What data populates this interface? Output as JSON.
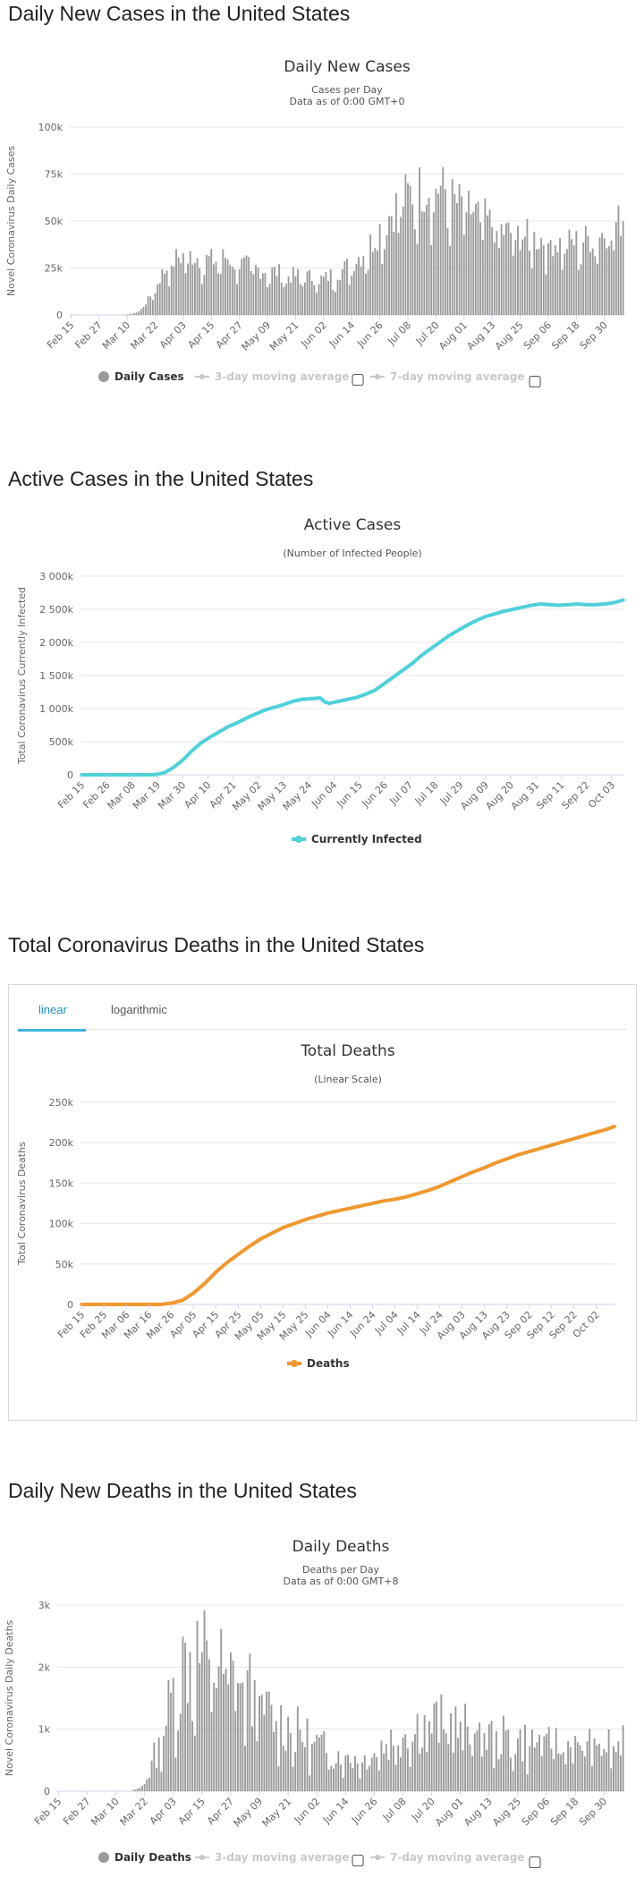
{
  "sections": [
    {
      "title": "Daily New Cases in the United States"
    },
    {
      "title": "Active Cases in the United States"
    },
    {
      "title": "Total Coronavirus Deaths in the United States"
    },
    {
      "title": "Daily New Deaths in the United States"
    }
  ],
  "tabs": {
    "linear": "linear",
    "log": "logarithmic"
  },
  "checkbox_glyph": "▢",
  "colors": {
    "bar": "#9a9a9a",
    "active": "#4fd1d9",
    "deaths": "#f0982f",
    "muted": "#c8c8c8",
    "grid": "#e6e6e6"
  },
  "chart_data": [
    {
      "id": "daily-cases",
      "type": "bar",
      "title": "Daily New Cases",
      "subtitle": [
        "Cases per Day",
        "Data as of 0:00 GMT+0"
      ],
      "ylabel": "Novel Coronavirus Daily Cases",
      "ylim": [
        0,
        100000
      ],
      "y_ticks": [
        {
          "value": 0,
          "label": "0"
        },
        {
          "value": 25000,
          "label": "25k"
        },
        {
          "value": 50000,
          "label": "50k"
        },
        {
          "value": 75000,
          "label": "75k"
        },
        {
          "value": 100000,
          "label": "100k"
        }
      ],
      "x_ticks": [
        "Feb 15",
        "Feb 27",
        "Mar 10",
        "Mar 22",
        "Apr 03",
        "Apr 15",
        "Apr 27",
        "May 09",
        "May 21",
        "Jun 02",
        "Jun 14",
        "Jun 26",
        "Jul 08",
        "Jul 20",
        "Aug 01",
        "Aug 13",
        "Aug 25",
        "Sep 06",
        "Sep 18",
        "Sep 30"
      ],
      "x_tick_step": 12,
      "n_days": 237,
      "anchors": [
        [
          0,
          0
        ],
        [
          22,
          0
        ],
        [
          26,
          500
        ],
        [
          30,
          3000
        ],
        [
          34,
          10000
        ],
        [
          38,
          20000
        ],
        [
          42,
          27000
        ],
        [
          46,
          31000
        ],
        [
          52,
          32000
        ],
        [
          56,
          30000
        ],
        [
          62,
          29000
        ],
        [
          66,
          31000
        ],
        [
          72,
          27000
        ],
        [
          76,
          26000
        ],
        [
          82,
          24000
        ],
        [
          88,
          23000
        ],
        [
          92,
          21000
        ],
        [
          98,
          21000
        ],
        [
          104,
          20000
        ],
        [
          108,
          19000
        ],
        [
          112,
          22000
        ],
        [
          116,
          24000
        ],
        [
          120,
          28000
        ],
        [
          124,
          32000
        ],
        [
          128,
          38000
        ],
        [
          132,
          46000
        ],
        [
          136,
          53000
        ],
        [
          140,
          60000
        ],
        [
          144,
          64000
        ],
        [
          148,
          67000
        ],
        [
          152,
          68000
        ],
        [
          156,
          69000
        ],
        [
          160,
          66000
        ],
        [
          164,
          60000
        ],
        [
          168,
          58000
        ],
        [
          172,
          55000
        ],
        [
          176,
          52000
        ],
        [
          180,
          48000
        ],
        [
          186,
          44000
        ],
        [
          192,
          43000
        ],
        [
          198,
          41000
        ],
        [
          204,
          40000
        ],
        [
          210,
          38000
        ],
        [
          216,
          39000
        ],
        [
          222,
          41000
        ],
        [
          228,
          44000
        ],
        [
          232,
          47000
        ],
        [
          236,
          52000
        ]
      ],
      "noise": 0.22,
      "seed": 7,
      "legend": [
        "Daily Cases",
        "3-day moving average",
        "7-day moving average"
      ]
    },
    {
      "id": "active-cases",
      "type": "line",
      "title": "Active Cases",
      "subtitle": [
        "(Number of Infected People)"
      ],
      "ylabel": "Total Coronavirus Currently Infected",
      "ylim": [
        0,
        3000000
      ],
      "y_ticks": [
        {
          "value": 0,
          "label": "0"
        },
        {
          "value": 500000,
          "label": "500k"
        },
        {
          "value": 1000000,
          "label": "1 000k"
        },
        {
          "value": 1500000,
          "label": "1 500k"
        },
        {
          "value": 2000000,
          "label": "2 000k"
        },
        {
          "value": 2500000,
          "label": "2 500k"
        },
        {
          "value": 3000000,
          "label": "3 000k"
        }
      ],
      "x_ticks": [
        "Feb 15",
        "Feb 26",
        "Mar 08",
        "Mar 19",
        "Mar 30",
        "Apr 10",
        "Apr 21",
        "May 02",
        "May 13",
        "May 24",
        "Jun 04",
        "Jun 15",
        "Jun 26",
        "Jul 07",
        "Jul 18",
        "Jul 29",
        "Aug 09",
        "Aug 20",
        "Aug 31",
        "Sep 11",
        "Sep 22",
        "Oct 03"
      ],
      "x_tick_step": 11,
      "n_days": 237,
      "anchors": [
        [
          0,
          0
        ],
        [
          28,
          0
        ],
        [
          32,
          3000
        ],
        [
          36,
          30000
        ],
        [
          40,
          110000
        ],
        [
          44,
          220000
        ],
        [
          48,
          360000
        ],
        [
          52,
          480000
        ],
        [
          56,
          570000
        ],
        [
          60,
          650000
        ],
        [
          64,
          730000
        ],
        [
          68,
          790000
        ],
        [
          72,
          860000
        ],
        [
          76,
          920000
        ],
        [
          80,
          980000
        ],
        [
          84,
          1020000
        ],
        [
          88,
          1060000
        ],
        [
          92,
          1110000
        ],
        [
          96,
          1140000
        ],
        [
          100,
          1150000
        ],
        [
          104,
          1160000
        ],
        [
          106,
          1100000
        ],
        [
          108,
          1080000
        ],
        [
          112,
          1110000
        ],
        [
          116,
          1140000
        ],
        [
          120,
          1170000
        ],
        [
          124,
          1220000
        ],
        [
          128,
          1280000
        ],
        [
          132,
          1380000
        ],
        [
          136,
          1480000
        ],
        [
          140,
          1580000
        ],
        [
          144,
          1680000
        ],
        [
          148,
          1800000
        ],
        [
          152,
          1900000
        ],
        [
          156,
          2000000
        ],
        [
          160,
          2100000
        ],
        [
          164,
          2180000
        ],
        [
          168,
          2260000
        ],
        [
          172,
          2330000
        ],
        [
          176,
          2390000
        ],
        [
          180,
          2430000
        ],
        [
          184,
          2470000
        ],
        [
          188,
          2500000
        ],
        [
          192,
          2530000
        ],
        [
          196,
          2560000
        ],
        [
          200,
          2580000
        ],
        [
          204,
          2570000
        ],
        [
          208,
          2560000
        ],
        [
          212,
          2570000
        ],
        [
          216,
          2580000
        ],
        [
          220,
          2570000
        ],
        [
          224,
          2570000
        ],
        [
          228,
          2580000
        ],
        [
          232,
          2600000
        ],
        [
          236,
          2640000
        ]
      ],
      "series_name": "Currently Infected"
    },
    {
      "id": "total-deaths",
      "type": "line",
      "title": "Total Deaths",
      "subtitle": [
        "(Linear Scale)"
      ],
      "ylabel": "Total Coronavirus Deaths",
      "ylim": [
        0,
        250000
      ],
      "y_ticks": [
        {
          "value": 0,
          "label": "0"
        },
        {
          "value": 50000,
          "label": "50k"
        },
        {
          "value": 100000,
          "label": "100k"
        },
        {
          "value": 150000,
          "label": "150k"
        },
        {
          "value": 200000,
          "label": "200k"
        },
        {
          "value": 250000,
          "label": "250k"
        }
      ],
      "x_ticks": [
        "Feb 15",
        "Feb 25",
        "Mar 06",
        "Mar 16",
        "Mar 26",
        "Apr 05",
        "Apr 15",
        "Apr 25",
        "May 05",
        "May 15",
        "May 25",
        "Jun 04",
        "Jun 14",
        "Jun 24",
        "Jul 04",
        "Jul 14",
        "Jul 24",
        "Aug 03",
        "Aug 13",
        "Aug 23",
        "Sep 02",
        "Sep 12",
        "Sep 22",
        "Oct 02"
      ],
      "x_tick_step": 10,
      "n_days": 239,
      "anchors": [
        [
          0,
          0
        ],
        [
          35,
          0
        ],
        [
          40,
          1500
        ],
        [
          45,
          5000
        ],
        [
          50,
          14000
        ],
        [
          55,
          26000
        ],
        [
          60,
          40000
        ],
        [
          65,
          52000
        ],
        [
          70,
          62000
        ],
        [
          75,
          72000
        ],
        [
          80,
          81000
        ],
        [
          85,
          88000
        ],
        [
          90,
          95000
        ],
        [
          95,
          100000
        ],
        [
          100,
          105000
        ],
        [
          105,
          109000
        ],
        [
          110,
          113000
        ],
        [
          115,
          116000
        ],
        [
          120,
          119000
        ],
        [
          125,
          122000
        ],
        [
          130,
          125000
        ],
        [
          135,
          128000
        ],
        [
          140,
          130000
        ],
        [
          145,
          133000
        ],
        [
          150,
          137000
        ],
        [
          155,
          141000
        ],
        [
          160,
          146000
        ],
        [
          165,
          152000
        ],
        [
          170,
          158000
        ],
        [
          175,
          164000
        ],
        [
          180,
          169000
        ],
        [
          185,
          175000
        ],
        [
          190,
          180000
        ],
        [
          195,
          185000
        ],
        [
          200,
          189000
        ],
        [
          205,
          193000
        ],
        [
          210,
          197000
        ],
        [
          215,
          201000
        ],
        [
          220,
          205000
        ],
        [
          225,
          209000
        ],
        [
          230,
          213000
        ],
        [
          234,
          216000
        ],
        [
          238,
          220000
        ]
      ],
      "series_name": "Deaths"
    },
    {
      "id": "daily-deaths",
      "type": "bar",
      "title": "Daily Deaths",
      "subtitle": [
        "Deaths per Day",
        "Data as of 0:00 GMT+8"
      ],
      "ylabel": "Novel Coronavirus Daily Deaths",
      "ylim": [
        0,
        3000
      ],
      "y_ticks": [
        {
          "value": 0,
          "label": "0"
        },
        {
          "value": 1000,
          "label": "1k"
        },
        {
          "value": 2000,
          "label": "2k"
        },
        {
          "value": 3000,
          "label": "3k"
        }
      ],
      "x_ticks": [
        "Feb 15",
        "Feb 27",
        "Mar 10",
        "Mar 22",
        "Apr 03",
        "Apr 15",
        "Apr 27",
        "May 09",
        "May 21",
        "Jun 02",
        "Jun 14",
        "Jun 26",
        "Jul 08",
        "Jul 20",
        "Aug 01",
        "Aug 13",
        "Aug 25",
        "Sep 06",
        "Sep 18",
        "Sep 30"
      ],
      "x_tick_step": 12,
      "n_days": 237,
      "anchors": [
        [
          0,
          0
        ],
        [
          30,
          0
        ],
        [
          34,
          50
        ],
        [
          38,
          300
        ],
        [
          42,
          800
        ],
        [
          46,
          1300
        ],
        [
          50,
          1900
        ],
        [
          54,
          2200
        ],
        [
          58,
          2200
        ],
        [
          62,
          2100
        ],
        [
          66,
          2000
        ],
        [
          70,
          1900
        ],
        [
          74,
          1800
        ],
        [
          78,
          1700
        ],
        [
          82,
          1500
        ],
        [
          86,
          1300
        ],
        [
          90,
          1200
        ],
        [
          94,
          1100
        ],
        [
          98,
          1000
        ],
        [
          102,
          900
        ],
        [
          106,
          800
        ],
        [
          110,
          700
        ],
        [
          114,
          650
        ],
        [
          118,
          600
        ],
        [
          122,
          550
        ],
        [
          126,
          520
        ],
        [
          130,
          600
        ],
        [
          134,
          700
        ],
        [
          138,
          800
        ],
        [
          142,
          900
        ],
        [
          146,
          1000
        ],
        [
          150,
          1050
        ],
        [
          154,
          1100
        ],
        [
          158,
          1100
        ],
        [
          162,
          1100
        ],
        [
          166,
          1050
        ],
        [
          170,
          1000
        ],
        [
          174,
          950
        ],
        [
          178,
          900
        ],
        [
          182,
          880
        ],
        [
          186,
          850
        ],
        [
          190,
          820
        ],
        [
          196,
          800
        ],
        [
          202,
          780
        ],
        [
          208,
          760
        ],
        [
          214,
          740
        ],
        [
          220,
          730
        ],
        [
          226,
          720
        ],
        [
          232,
          720
        ],
        [
          236,
          740
        ]
      ],
      "noise": 0.45,
      "seed": 13,
      "legend": [
        "Daily Deaths",
        "3-day moving average",
        "7-day moving average"
      ]
    }
  ]
}
